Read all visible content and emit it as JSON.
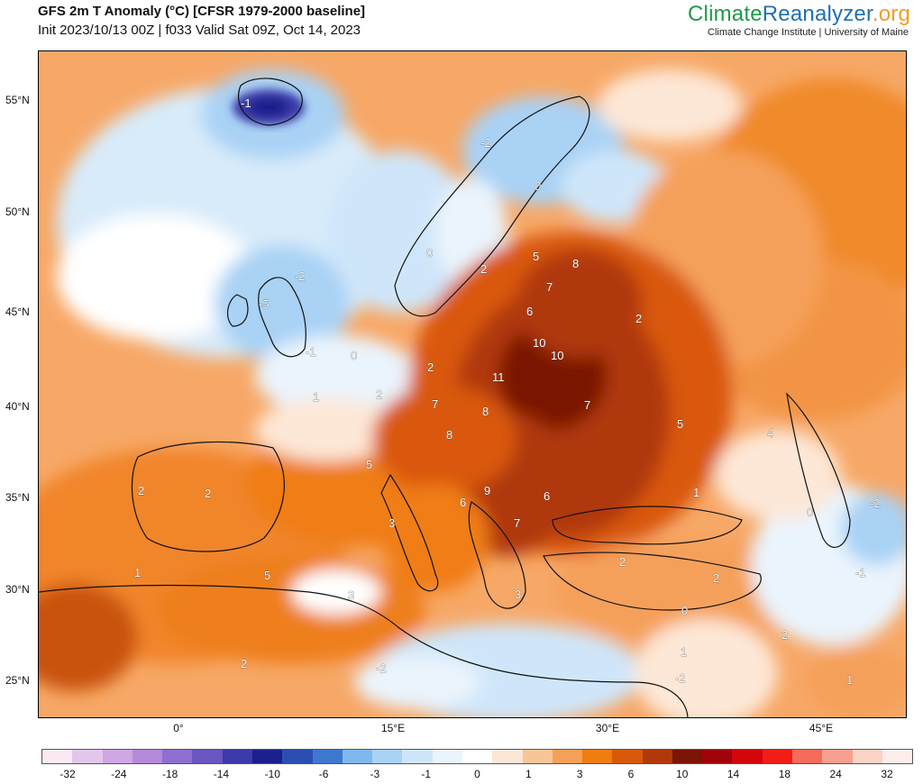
{
  "header": {
    "title": "GFS 2m T Anomaly (°C) [CFSR 1979-2000 baseline]",
    "subtitle": "Init 2023/10/13 00Z | f033 Valid Sat 09Z, Oct 14, 2023"
  },
  "brand": {
    "part1": "Climate",
    "part2": "Reanalyzer",
    "part3": ".org",
    "affiliation": "Climate Change Institute | University of Maine",
    "colors": {
      "green": "#1c9a4a",
      "blue": "#1f6fb5",
      "orange": "#f39c28"
    }
  },
  "axes": {
    "lat_labels": [
      "55°N",
      "50°N",
      "45°N",
      "40°N",
      "35°N",
      "30°N",
      "25°N"
    ],
    "lon_labels": [
      "0°",
      "15°E",
      "30°E",
      "45°E"
    ]
  },
  "colorbar": {
    "colors": [
      "#fbe9f4",
      "#e2c7ea",
      "#cfa7e2",
      "#b58ad8",
      "#8f6fcf",
      "#6b55c0",
      "#3b3aa8",
      "#1a1f8c",
      "#2b4fb0",
      "#3f78cf",
      "#7fb8ee",
      "#a9d2f5",
      "#cfe6fa",
      "#eaf4fd",
      "#ffffff",
      "#fde7d6",
      "#f8c596",
      "#f5a05a",
      "#f07d12",
      "#d9590a",
      "#b0390a",
      "#7a1404",
      "#a1030a",
      "#d4060b",
      "#f21d16",
      "#f56c5a",
      "#f6a08f",
      "#fbd3c4",
      "#fdeeec"
    ],
    "tick_labels": [
      "-32",
      "-24",
      "-18",
      "-14",
      "-10",
      "-6",
      "-3",
      "-1",
      "0",
      "1",
      "3",
      "6",
      "10",
      "14",
      "18",
      "24",
      "32"
    ]
  },
  "contour_labels": [
    "-1",
    "-2",
    "-2",
    "0",
    "0",
    "2",
    "-5",
    "-1",
    "0",
    "1",
    "2",
    "2",
    "5",
    "5",
    "6",
    "7",
    "8",
    "10",
    "10",
    "11",
    "7",
    "8",
    "7",
    "8",
    "9",
    "6",
    "6",
    "7",
    "2",
    "2",
    "2",
    "5",
    "1",
    "4",
    "-2",
    "0",
    "-1",
    "5",
    "3",
    "3",
    "2",
    "2",
    "1",
    "2",
    "0",
    "1",
    "-2",
    "-2",
    "2",
    "1",
    "3"
  ]
}
